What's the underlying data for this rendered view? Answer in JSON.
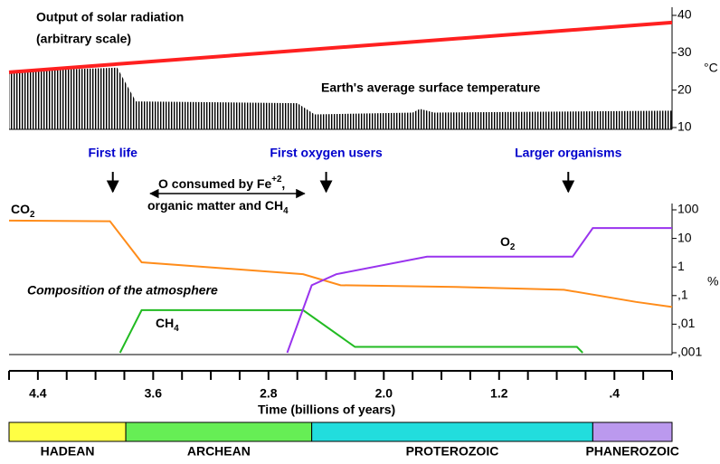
{
  "chart_data": [
    {
      "type": "line",
      "annotations": [
        "Output of solar radiation",
        "(arbitrary scale)",
        "Earth's average surface temperature"
      ],
      "ylim": [
        10,
        40
      ],
      "yticks": [
        10,
        20,
        30,
        40
      ],
      "y_unit": "°C",
      "xlim": [
        4.6,
        0
      ],
      "series": [
        {
          "name": "Earth's average surface temperature",
          "kind": "bars",
          "color": "#000000",
          "x": [
            4.6,
            3.85,
            3.72,
            2.6,
            2.48,
            1.8,
            1.75,
            1.65,
            0
          ],
          "values": [
            25,
            26,
            17,
            16.5,
            13.5,
            14,
            15,
            14,
            14.5
          ]
        },
        {
          "name": "Output of solar radiation",
          "kind": "line",
          "color": "#ff2020",
          "x": [
            4.6,
            0
          ],
          "values": [
            24.8,
            38.1
          ]
        }
      ]
    },
    {
      "type": "line",
      "log": true,
      "title": "Composition of the atmosphere",
      "ylim": [
        0.001,
        100
      ],
      "yticks": [
        {
          "value": 100,
          "label": "100"
        },
        {
          "value": 10,
          "label": "10"
        },
        {
          "value": 1,
          "label": "1"
        },
        {
          "value": 0.1,
          "label": ",1"
        },
        {
          "value": 0.01,
          "label": ",01"
        },
        {
          "value": 0.001,
          "label": ",001"
        }
      ],
      "y_unit": "%",
      "xlim": [
        4.6,
        0
      ],
      "series": [
        {
          "label": [
            "CO",
            "2"
          ],
          "color": "#ff8c1a",
          "x": [
            4.6,
            3.9,
            3.68,
            2.56,
            2.3,
            1.5,
            0.75,
            0.25,
            0
          ],
          "values": [
            42,
            40,
            1.46,
            0.56,
            0.23,
            0.2,
            0.16,
            0.06,
            0.04
          ]
        },
        {
          "label": [
            "CH",
            "4"
          ],
          "color": "#22bb22",
          "x": [
            3.83,
            3.68,
            2.56,
            2.2,
            0.66,
            0.62
          ],
          "values": [
            0.001,
            0.031,
            0.031,
            0.0016,
            0.0016,
            0.001
          ]
        },
        {
          "label": [
            "O",
            "2"
          ],
          "color": "#9933ee",
          "x": [
            2.67,
            2.5,
            2.33,
            1.7,
            0.69,
            0.55,
            0
          ],
          "values": [
            0.001,
            0.23,
            0.56,
            2.3,
            2.3,
            23,
            23
          ]
        }
      ]
    }
  ],
  "events": [
    {
      "label": "First life",
      "x": 3.88
    },
    {
      "label": "First oxygen users",
      "x": 2.4
    },
    {
      "label": "Larger organisms",
      "x": 0.72
    }
  ],
  "oxygen_sink": {
    "line1": [
      "O consumed by Fe",
      "+2",
      ","
    ],
    "line2": [
      "organic matter and CH",
      "4"
    ],
    "range": [
      3.62,
      2.55
    ]
  },
  "time_axis": {
    "label": "Time (billions of years)",
    "xticks": [
      4.4,
      3.6,
      2.8,
      {
        "value": 2,
        "label": "2.0"
      },
      1.2,
      {
        "value": 0.4,
        "label": ".4"
      }
    ],
    "minor_ticks": [
      4.6,
      4.4,
      4.2,
      4.0,
      3.8,
      3.6,
      3.4,
      3.2,
      3.0,
      2.8,
      2.6,
      2.4,
      2.2,
      2.0,
      1.8,
      1.6,
      1.4,
      1.2,
      1.0,
      0.8,
      0.6,
      0.4,
      0.2,
      0
    ]
  },
  "eons": [
    {
      "name": "HADEAN",
      "start": 4.6,
      "end": 3.79,
      "color": "#ffff44"
    },
    {
      "name": "ARCHEAN",
      "start": 3.79,
      "end": 2.5,
      "color": "#66ee55"
    },
    {
      "name": "PROTEROZOIC",
      "start": 2.5,
      "end": 0.55,
      "color": "#22dddd"
    },
    {
      "name": "PHANEROZOIC",
      "start": 0.55,
      "end": 0,
      "color": "#bb99ee"
    }
  ]
}
